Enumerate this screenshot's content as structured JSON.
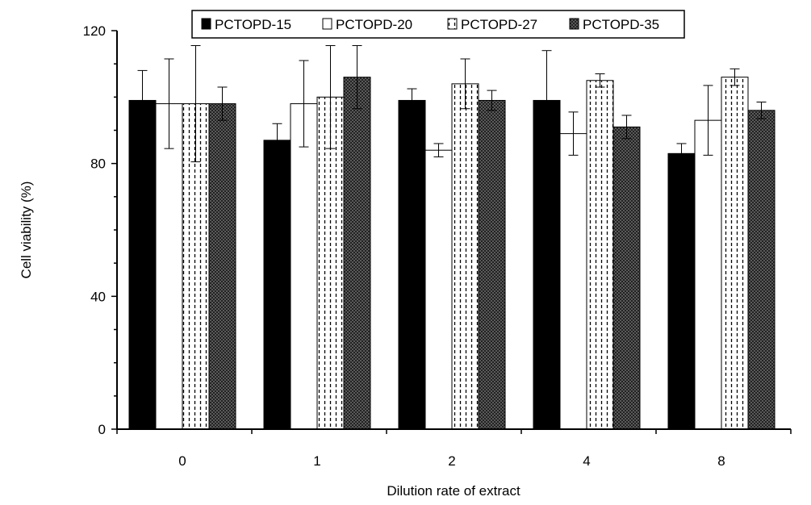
{
  "chart_data": {
    "type": "bar",
    "title": "",
    "xlabel": "Dilution rate of extract",
    "ylabel": "Cell viability (%)",
    "ylim": [
      0,
      120
    ],
    "yticks": [
      "0",
      "40",
      "80",
      "120"
    ],
    "categories": [
      "0",
      "1",
      "2",
      "4",
      "8"
    ],
    "grid": false,
    "legend_position": "top",
    "series": [
      {
        "name": "PCTOPD-15",
        "pattern": "solid",
        "values": [
          99,
          87,
          99,
          99,
          83
        ],
        "errors": [
          9,
          5,
          3.5,
          15,
          3
        ]
      },
      {
        "name": "PCTOPD-20",
        "pattern": "hollow",
        "values": [
          98,
          98,
          84,
          89,
          93
        ],
        "errors": [
          13.5,
          13,
          2,
          6.5,
          10.5
        ]
      },
      {
        "name": "PCTOPD-27",
        "pattern": "dashed",
        "values": [
          98,
          100,
          104,
          105,
          106
        ],
        "errors": [
          17.5,
          15.5,
          7.5,
          2,
          2.5
        ]
      },
      {
        "name": "PCTOPD-35",
        "pattern": "checker",
        "values": [
          98,
          106,
          99,
          91,
          96
        ],
        "errors": [
          5,
          9.5,
          3,
          3.5,
          2.5
        ]
      }
    ]
  }
}
